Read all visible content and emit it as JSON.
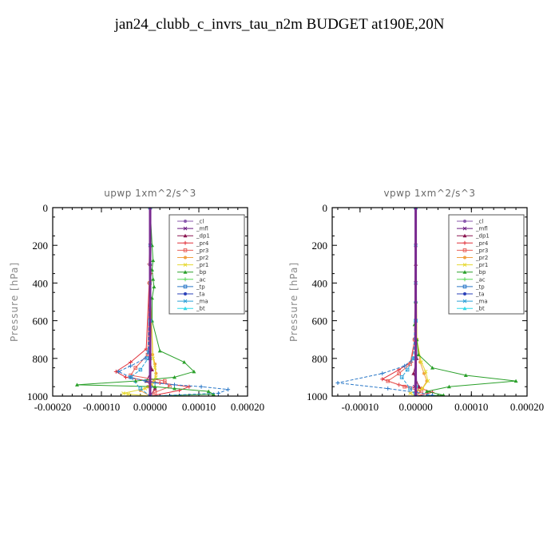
{
  "title": "jan24_clubb_c_invrs_tau_n2m  BUDGET at190E,20N",
  "colors": {
    "_cl": "#8a5aae",
    "_mfl": "#6a1a82",
    "_dp1": "#8b1550",
    "_pr4": "#e0303a",
    "_pr3": "#e8605a",
    "_pr2": "#f0a040",
    "_pr1": "#e6d830",
    "_bp": "#2aa02a",
    "_ac": "#56d856",
    "_tp": "#2a78c8",
    "_ta": "#2a40b8",
    "_ma": "#2aa0d8",
    "_bt": "#30d8e8"
  },
  "chart_data": [
    {
      "type": "line",
      "title": "upwp   1xm^2/s^3",
      "ylabel": "Pressure [hPa]",
      "xlabel": "",
      "xlim": [
        -0.0002,
        0.0002
      ],
      "ylim": [
        1000,
        0
      ],
      "xticks": [
        "-0.00020",
        "-0.00010",
        "0.00000",
        "0.00010",
        "0.00020"
      ],
      "yticks": [
        "0",
        "200",
        "400",
        "600",
        "800",
        "1000"
      ],
      "legend": "top-right",
      "series": [
        {
          "name": "_cl",
          "x": [
            0,
            0,
            0,
            0,
            0,
            2e-06,
            0
          ],
          "y": [
            0,
            200,
            400,
            600,
            800,
            950,
            1000
          ]
        },
        {
          "name": "_mfl",
          "x": [
            0,
            0,
            0,
            0,
            0,
            -2e-06,
            0
          ],
          "y": [
            0,
            200,
            400,
            600,
            800,
            950,
            1000
          ]
        },
        {
          "name": "_dp1",
          "x": [
            0,
            0,
            0,
            -2e-06,
            4e-06,
            -8e-06,
            1e-05,
            0
          ],
          "y": [
            0,
            300,
            600,
            800,
            860,
            920,
            960,
            1000
          ]
        },
        {
          "name": "_pr4",
          "x": [
            0,
            -2e-06,
            2e-06,
            -2e-06,
            -8e-06,
            -4e-05,
            -7e-05,
            -5e-05,
            2e-05,
            8e-05,
            6e-05,
            0
          ],
          "y": [
            0,
            300,
            350,
            400,
            750,
            820,
            870,
            900,
            930,
            950,
            970,
            1000
          ]
        },
        {
          "name": "_pr3",
          "x": [
            0,
            -1e-06,
            -5e-06,
            -3e-05,
            -4e-05,
            3e-05,
            4e-05,
            1e-05,
            0
          ],
          "y": [
            0,
            400,
            780,
            850,
            890,
            920,
            950,
            980,
            1000
          ]
        },
        {
          "name": "_pr2",
          "x": [
            0,
            0,
            5e-06,
            1e-05,
            1.2e-05,
            8e-06,
            -5e-06,
            -2e-05,
            0
          ],
          "y": [
            0,
            400,
            780,
            830,
            880,
            920,
            950,
            970,
            1000
          ]
        },
        {
          "name": "_pr1",
          "x": [
            0,
            0,
            6e-06,
            1e-05,
            1.2e-05,
            4e-06,
            -1e-05,
            -5.5e-05,
            -4.5e-05,
            0
          ],
          "y": [
            0,
            400,
            800,
            850,
            900,
            940,
            960,
            985,
            990,
            1000
          ]
        },
        {
          "name": "_bp",
          "x": [
            0,
            4e-06,
            6e-06,
            4e-06,
            6e-06,
            8e-06,
            4e-06,
            4e-06,
            2e-05,
            7e-05,
            9e-05,
            5e-05,
            -3e-05,
            -0.00015,
            1e-05,
            5e-05,
            0.00012,
            0.00013,
            0
          ],
          "y": [
            0,
            200,
            280,
            330,
            380,
            420,
            480,
            600,
            760,
            820,
            870,
            900,
            920,
            940,
            950,
            960,
            975,
            990,
            1000
          ]
        },
        {
          "name": "_tp",
          "x": [
            0,
            0,
            -4e-06,
            -1e-05,
            -4e-05,
            -6.5e-05,
            -4e-05,
            -1e-05,
            1e-05,
            5e-05,
            0.000105,
            0.00016,
            0.00014,
            0
          ],
          "y": [
            0,
            300,
            760,
            800,
            840,
            870,
            900,
            920,
            930,
            940,
            950,
            965,
            985,
            1000
          ]
        },
        {
          "name": "_ma",
          "x": [
            0,
            0,
            -4e-06,
            -2e-05,
            -4e-05,
            -2e-05,
            0
          ],
          "y": [
            0,
            600,
            800,
            860,
            900,
            960,
            1000
          ]
        },
        {
          "name": "_bt",
          "x": [
            0,
            0,
            0,
            0,
            0,
            1e-06,
            0
          ],
          "y": [
            0,
            200,
            400,
            600,
            800,
            950,
            1000
          ]
        }
      ]
    },
    {
      "type": "line",
      "title": "vpwp   1xm^2/s^3",
      "ylabel": "Pressure [hPa]",
      "xlabel": "",
      "xlim": [
        -0.00015,
        0.0002
      ],
      "ylim": [
        1000,
        0
      ],
      "xticks": [
        "-0.00010",
        "0.00000",
        "0.00010",
        "0.00020"
      ],
      "yticks": [
        "0",
        "200",
        "400",
        "600",
        "800",
        "1000"
      ],
      "legend": "top-right",
      "series": [
        {
          "name": "_cl",
          "x": [
            0,
            0,
            0,
            0,
            0,
            2e-06,
            0
          ],
          "y": [
            0,
            200,
            400,
            600,
            800,
            950,
            1000
          ]
        },
        {
          "name": "_mfl",
          "x": [
            0,
            0,
            0,
            0,
            0,
            -2e-06,
            0
          ],
          "y": [
            0,
            200,
            400,
            600,
            800,
            950,
            1000
          ]
        },
        {
          "name": "_dp1",
          "x": [
            0,
            0,
            0,
            2e-06,
            -4e-06,
            6e-06,
            0
          ],
          "y": [
            0,
            300,
            600,
            800,
            880,
            950,
            1000
          ]
        },
        {
          "name": "_pr4",
          "x": [
            0,
            -2e-06,
            -8e-06,
            -3e-05,
            -6e-05,
            -3e-05,
            1e-05,
            3e-05,
            0
          ],
          "y": [
            0,
            700,
            820,
            860,
            910,
            940,
            960,
            980,
            1000
          ]
        },
        {
          "name": "_pr3",
          "x": [
            0,
            -2e-06,
            -1e-05,
            -3e-05,
            -5e-05,
            -2e-05,
            1e-05,
            0
          ],
          "y": [
            0,
            700,
            830,
            880,
            920,
            950,
            975,
            1000
          ]
        },
        {
          "name": "_pr2",
          "x": [
            0,
            2e-06,
            8e-06,
            1.5e-05,
            2e-05,
            1.2e-05,
            0
          ],
          "y": [
            0,
            700,
            820,
            880,
            920,
            960,
            1000
          ]
        },
        {
          "name": "_pr1",
          "x": [
            0,
            2e-06,
            1e-05,
            1.8e-05,
            2.2e-05,
            1.2e-05,
            -1e-05,
            0
          ],
          "y": [
            0,
            700,
            820,
            870,
            920,
            960,
            985,
            1000
          ]
        },
        {
          "name": "_bp",
          "x": [
            0,
            0,
            -2e-06,
            2e-06,
            5e-06,
            3e-05,
            9e-05,
            0.00018,
            6e-05,
            2e-05,
            5e-05,
            0
          ],
          "y": [
            0,
            500,
            620,
            700,
            780,
            850,
            890,
            920,
            950,
            975,
            995,
            1000
          ]
        },
        {
          "name": "_tp",
          "x": [
            0,
            0,
            -4e-06,
            -2e-05,
            -6e-05,
            -0.00014,
            -5e-05,
            0,
            3e-05,
            0
          ],
          "y": [
            0,
            500,
            800,
            840,
            880,
            930,
            960,
            980,
            995,
            1000
          ]
        },
        {
          "name": "_ma",
          "x": [
            0,
            0,
            -4e-06,
            -1.5e-05,
            -2.5e-05,
            -1e-05,
            0
          ],
          "y": [
            0,
            600,
            800,
            860,
            900,
            960,
            1000
          ]
        },
        {
          "name": "_bt",
          "x": [
            0,
            0,
            0,
            0,
            0,
            1e-06,
            0
          ],
          "y": [
            0,
            200,
            400,
            600,
            800,
            950,
            1000
          ]
        }
      ]
    }
  ],
  "legend_items": [
    "_cl",
    "_mfl",
    "_dp1",
    "_pr4",
    "_pr3",
    "_pr2",
    "_pr1",
    "_bp",
    "_ac",
    "_tp",
    "_ta",
    "_ma",
    "_bt"
  ]
}
